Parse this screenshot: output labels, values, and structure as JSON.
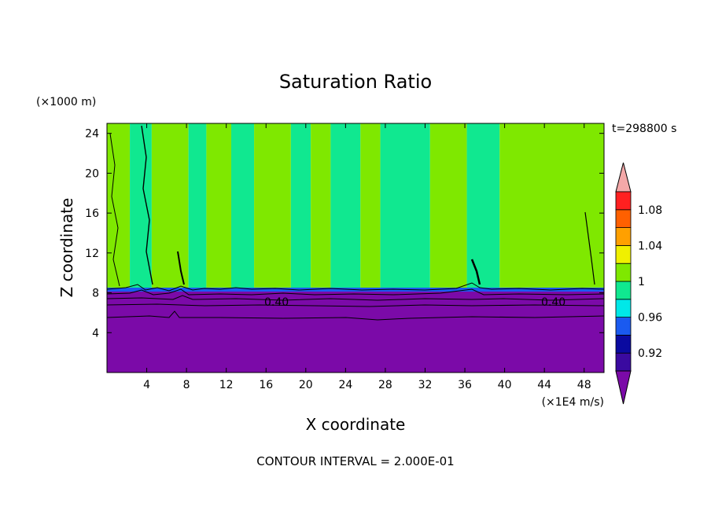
{
  "chart_data": {
    "type": "heatmap",
    "title": "Saturation Ratio",
    "xlabel": "X coordinate",
    "ylabel": "Z coordinate",
    "x_unit": "(×1E4 m/s)",
    "y_unit": "(×1000 m)",
    "time_label": "t=298800 s",
    "contour_interval_text": "CONTOUR INTERVAL = 2.000E-01",
    "xlim": [
      0,
      50
    ],
    "ylim": [
      0,
      25
    ],
    "x_ticks": [
      4,
      8,
      12,
      16,
      20,
      24,
      28,
      32,
      36,
      40,
      44,
      48
    ],
    "y_ticks": [
      4,
      8,
      12,
      16,
      20,
      24
    ],
    "colorbar": {
      "levels": [
        0.9,
        0.92,
        0.94,
        0.96,
        0.98,
        1.0,
        1.02,
        1.04,
        1.06,
        1.08,
        1.1
      ],
      "labels": [
        "0.92",
        "0.96",
        "1",
        "1.04",
        "1.08"
      ],
      "label_values": [
        0.92,
        0.96,
        1.0,
        1.04,
        1.08
      ],
      "colors": [
        "#3a0aa0",
        "#0a0aa0",
        "#1a5af0",
        "#00e8e8",
        "#10e890",
        "#7fe800",
        "#f0f000",
        "#ffa000",
        "#ff6000",
        "#ff2020"
      ],
      "over_color": "#f4a8a8",
      "under_color": "#7b0aa8"
    },
    "regions": {
      "lower_layer_top_z": 8.3,
      "lower_layer_value": "< 0.9",
      "upper_alternating_bands": [
        {
          "x0": 0.0,
          "x1": 2.3,
          "value": 1.01
        },
        {
          "x0": 2.3,
          "x1": 4.5,
          "value": 0.99
        },
        {
          "x0": 4.5,
          "x1": 8.2,
          "value": 1.01
        },
        {
          "x0": 8.2,
          "x1": 10.0,
          "value": 0.99
        },
        {
          "x0": 10.0,
          "x1": 12.5,
          "value": 1.01
        },
        {
          "x0": 12.5,
          "x1": 14.8,
          "value": 0.99
        },
        {
          "x0": 14.8,
          "x1": 18.5,
          "value": 1.01
        },
        {
          "x0": 18.5,
          "x1": 20.5,
          "value": 0.99
        },
        {
          "x0": 20.5,
          "x1": 22.5,
          "value": 1.01
        },
        {
          "x0": 22.5,
          "x1": 25.5,
          "value": 0.99
        },
        {
          "x0": 25.5,
          "x1": 27.5,
          "value": 1.01
        },
        {
          "x0": 27.5,
          "x1": 32.5,
          "value": 0.99
        },
        {
          "x0": 32.5,
          "x1": 36.2,
          "value": 1.01
        },
        {
          "x0": 36.2,
          "x1": 39.5,
          "value": 0.99
        },
        {
          "x0": 39.5,
          "x1": 50.0,
          "value": 1.01
        }
      ]
    },
    "contour_labels": [
      {
        "text": "0.40",
        "x": 17.0,
        "z": 6.4
      },
      {
        "text": "0.40",
        "x": 45.0,
        "z": 6.4
      }
    ]
  }
}
